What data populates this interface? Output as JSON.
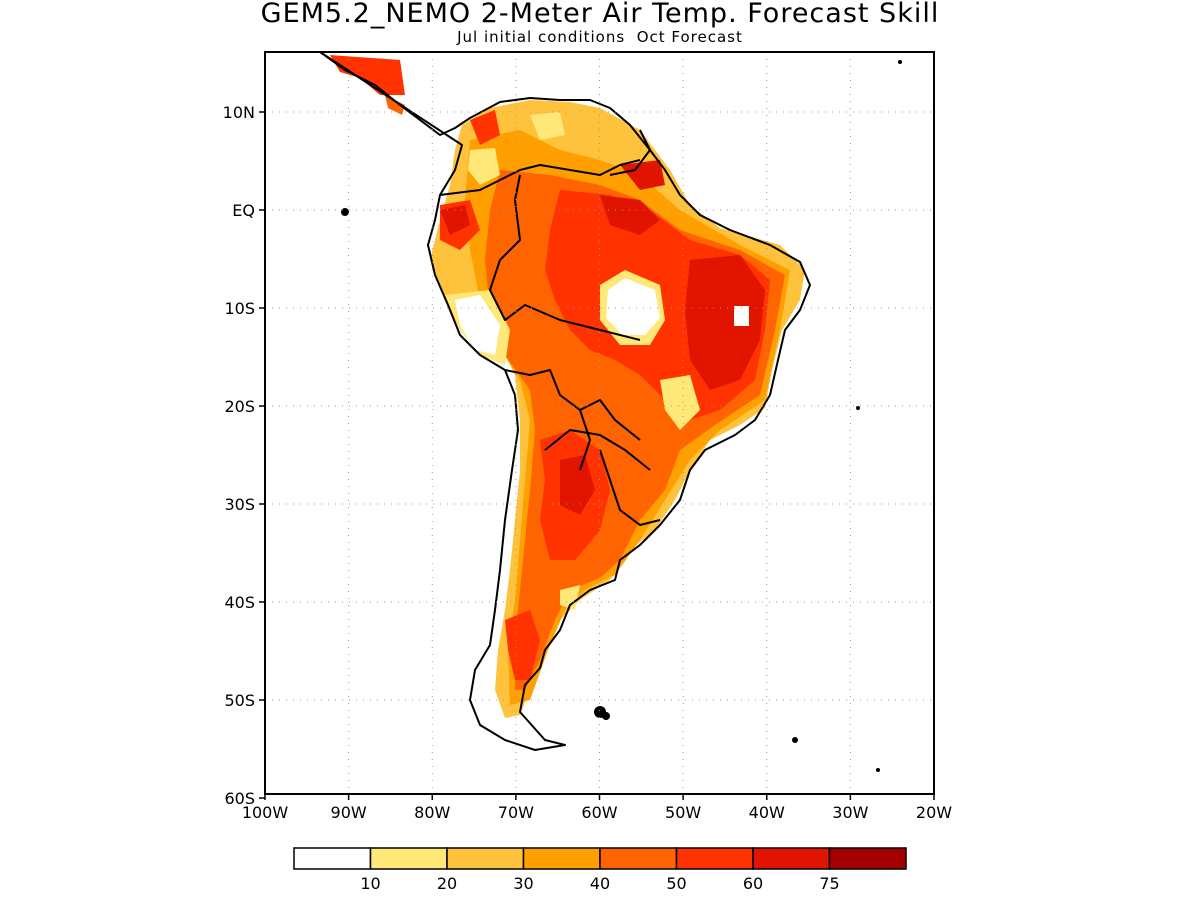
{
  "title": "GEM5.2_NEMO 2-Meter Air Temp. Forecast Skill",
  "subtitle": "Jul initial conditions  Oct Forecast",
  "map": {
    "region": "South America",
    "lat_range": [
      -60,
      15
    ],
    "lon_range": [
      -100,
      -20
    ],
    "lat_ticks": [
      {
        "value": 10,
        "label": "10N"
      },
      {
        "value": 0,
        "label": "EQ"
      },
      {
        "value": -10,
        "label": "10S"
      },
      {
        "value": -20,
        "label": "20S"
      },
      {
        "value": -30,
        "label": "30S"
      },
      {
        "value": -40,
        "label": "40S"
      },
      {
        "value": -50,
        "label": "50S"
      },
      {
        "value": -60,
        "label": "60S"
      }
    ],
    "lon_ticks": [
      {
        "value": -100,
        "label": "100W"
      },
      {
        "value": -90,
        "label": "90W"
      },
      {
        "value": -80,
        "label": "80W"
      },
      {
        "value": -70,
        "label": "70W"
      },
      {
        "value": -60,
        "label": "60W"
      },
      {
        "value": -50,
        "label": "50W"
      },
      {
        "value": -40,
        "label": "40W"
      },
      {
        "value": -30,
        "label": "30W"
      },
      {
        "value": -20,
        "label": "20W"
      }
    ],
    "grid": "dotted",
    "skill_fill": "shaded 2-meter air temperature forecast skill over land"
  },
  "legend": {
    "bins": [
      {
        "color": "#ffffff"
      },
      {
        "color": "#ffe878"
      },
      {
        "color": "#ffc23c"
      },
      {
        "color": "#ffa000"
      },
      {
        "color": "#ff6400"
      },
      {
        "color": "#ff3200"
      },
      {
        "color": "#e11400"
      },
      {
        "color": "#a50000"
      }
    ],
    "labels": [
      "10",
      "20",
      "30",
      "40",
      "50",
      "60",
      "75"
    ]
  }
}
